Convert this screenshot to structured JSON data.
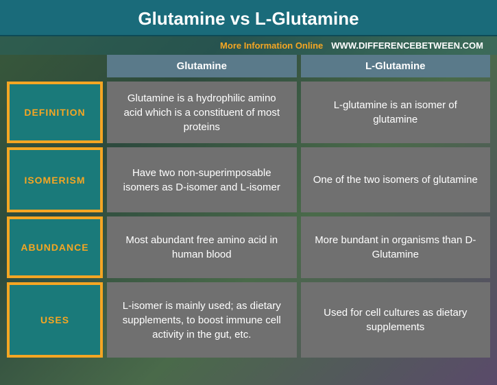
{
  "header": {
    "title": "Glutamine vs L-Glutamine",
    "more_info": "More Information Online",
    "url": "WWW.DIFFERENCEBETWEEN.COM"
  },
  "columns": {
    "col1": "Glutamine",
    "col2": "L-Glutamine"
  },
  "rows": [
    {
      "label": "DEFINITION",
      "col1": "Glutamine is a hydrophilic amino acid which is a constituent of most proteins",
      "col2": "L-glutamine is an isomer of glutamine"
    },
    {
      "label": "ISOMERISM",
      "col1": "Have two non-superimposable isomers as D-isomer and L-isomer",
      "col2": "One of the two isomers of glutamine"
    },
    {
      "label": "ABUNDANCE",
      "col1": "Most abundant free amino acid in human blood",
      "col2": "More bundant in organisms than D-Glutamine"
    },
    {
      "label": "USES",
      "col1": "L-isomer is mainly used; as dietary supplements, to boost immune cell activity in the gut, etc.",
      "col2": "Used for cell cultures as dietary supplements"
    }
  ],
  "colors": {
    "header_bg": "#1a6b7a",
    "accent": "#f5a623",
    "label_bg": "#1a7a7a",
    "col_header_bg": "#5a7a8a",
    "cell_bg": "#707070",
    "text_white": "#ffffff"
  }
}
